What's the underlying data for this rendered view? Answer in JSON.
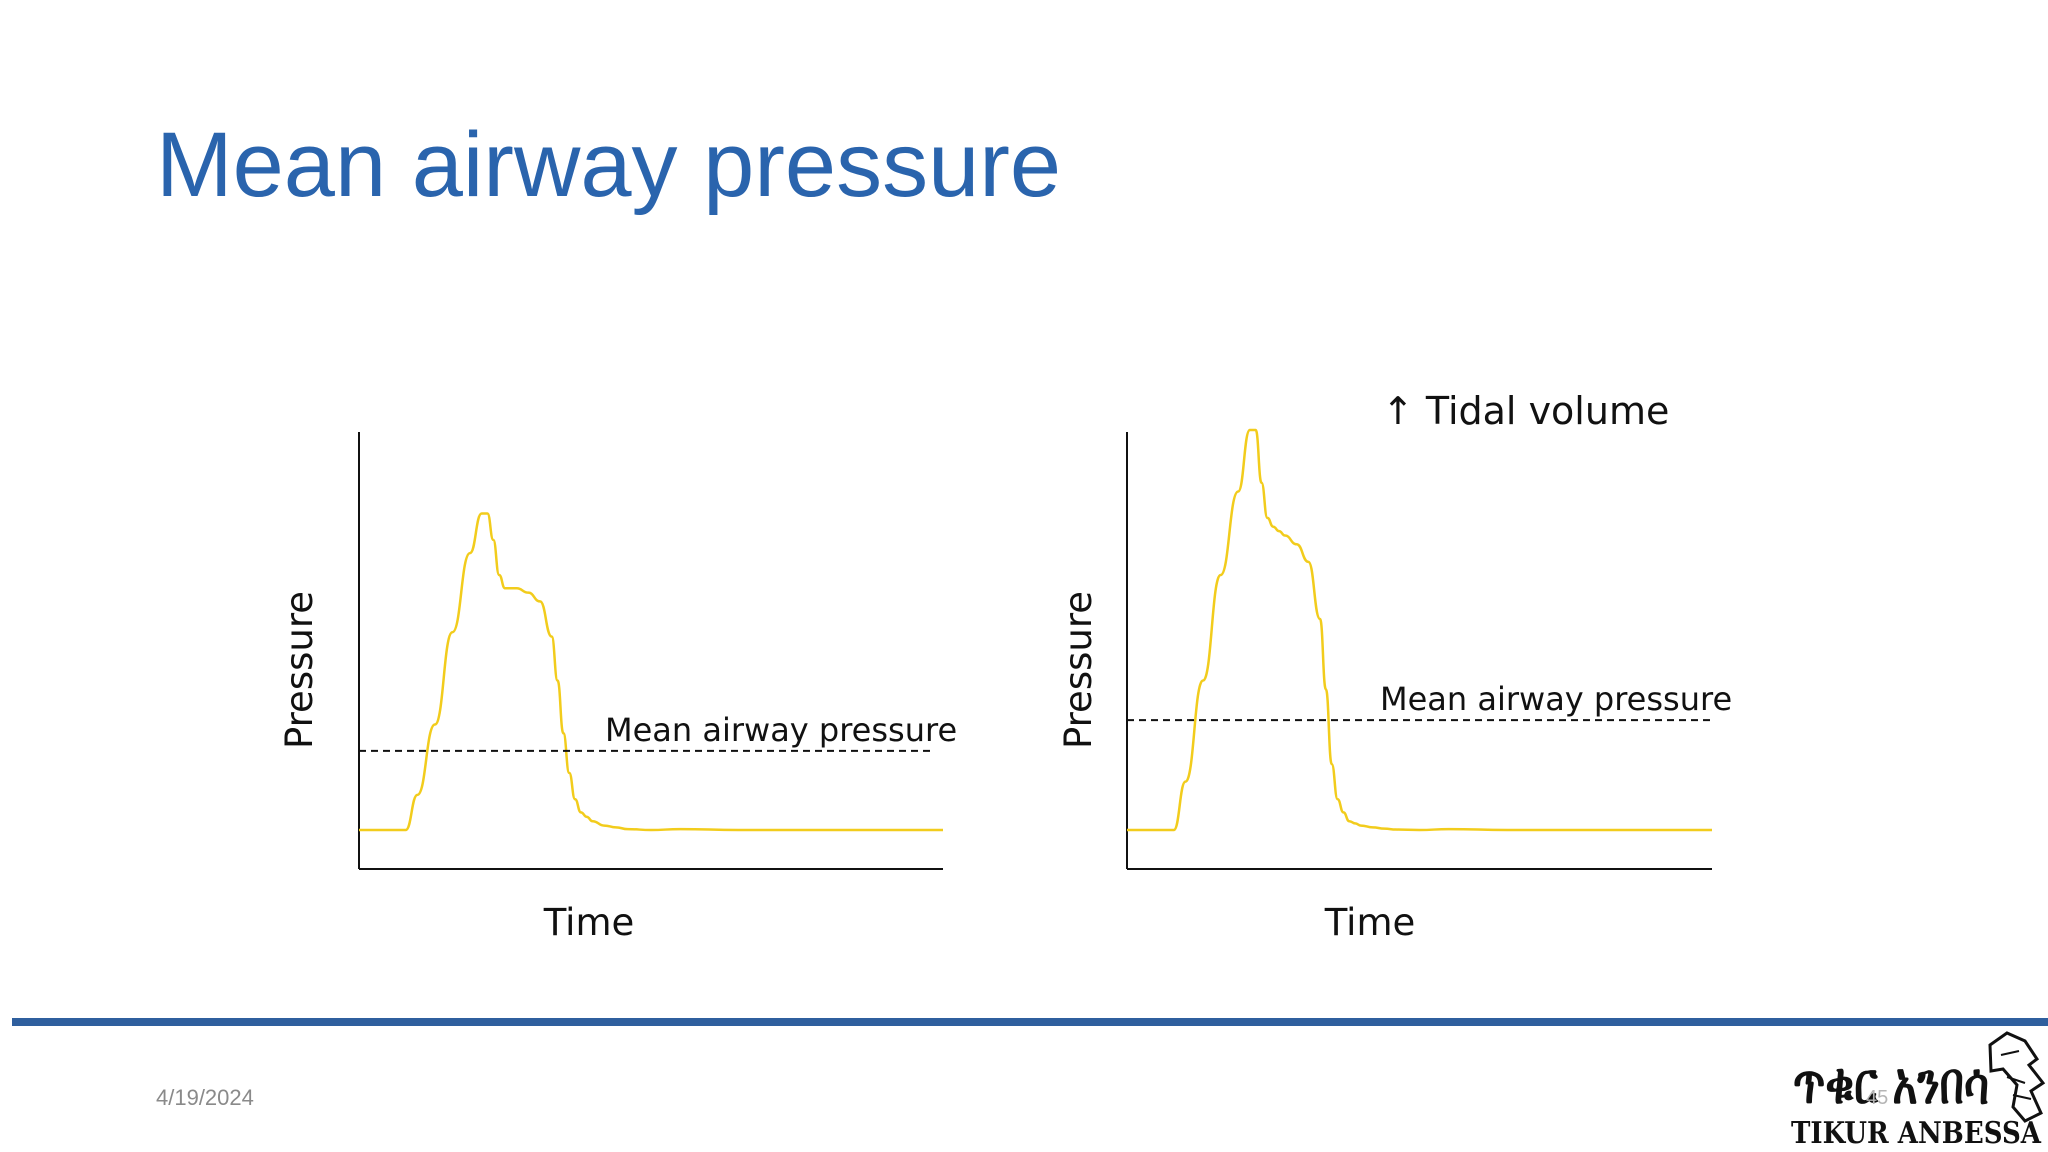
{
  "slide": {
    "title": "Mean airway pressure",
    "date": "4/19/2024",
    "number": "45",
    "logo": {
      "script_text": "ጥቁር አንበሳ",
      "latin_text": "TIKUR ANBESSA"
    }
  },
  "colors": {
    "title": "#2a64ad",
    "curve": "#f2cc1c",
    "footer_rule": "#2f5f9e"
  },
  "chart_data": [
    {
      "type": "line",
      "title": "",
      "xlabel": "Time",
      "ylabel": "Pressure",
      "xlim": [
        0,
        100
      ],
      "ylim": [
        0,
        100
      ],
      "grid": false,
      "series": [
        {
          "x": [
            0,
            8,
            10,
            13,
            16,
            19,
            21,
            22,
            23,
            24,
            25,
            26,
            27,
            29,
            31,
            33,
            34,
            35,
            36,
            37,
            38,
            39,
            40,
            42,
            44,
            46,
            50,
            55,
            65,
            80,
            100
          ],
          "y": [
            9,
            9,
            17,
            33,
            54,
            72,
            81,
            81,
            75,
            67,
            64,
            64,
            64,
            63,
            61,
            53,
            43,
            31,
            22,
            16,
            13,
            12,
            11,
            10,
            9.6,
            9.2,
            9,
            9.2,
            9,
            9,
            9
          ]
        }
      ],
      "annotations": [
        {
          "text": "Mean airway pressure",
          "y": 27,
          "style": "dashed"
        }
      ]
    },
    {
      "type": "line",
      "title": "↑ Tidal volume",
      "xlabel": "Time",
      "ylabel": "Pressure",
      "xlim": [
        0,
        100
      ],
      "ylim": [
        0,
        100
      ],
      "grid": false,
      "series": [
        {
          "x": [
            0,
            8,
            10,
            13,
            16,
            19,
            21,
            22,
            23,
            24,
            25,
            26,
            27,
            29,
            31,
            33,
            34,
            35,
            36,
            37,
            38,
            39,
            40,
            42,
            44,
            46,
            50,
            55,
            65,
            80,
            100
          ],
          "y": [
            9,
            9,
            20,
            43,
            67,
            86,
            100,
            100,
            88,
            80,
            78,
            77,
            76,
            74,
            70,
            57,
            41,
            24,
            16,
            13,
            11,
            10.5,
            10,
            9.6,
            9.3,
            9.1,
            9,
            9.2,
            9,
            9,
            9
          ]
        }
      ],
      "annotations": [
        {
          "text": "Mean airway pressure",
          "y": 34,
          "style": "dashed"
        }
      ]
    }
  ]
}
